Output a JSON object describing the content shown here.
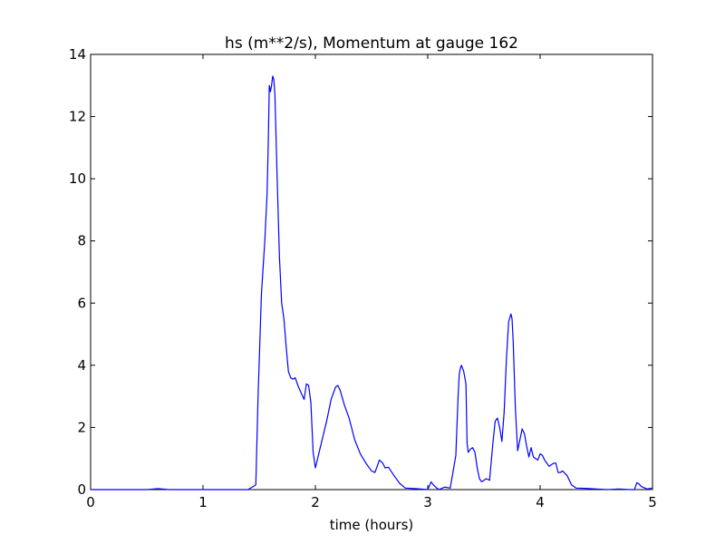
{
  "chart_data": {
    "type": "line",
    "title": "hs (m**2/s), Momentum at gauge 162",
    "xlabel": "time (hours)",
    "ylabel": "",
    "xlim": [
      0,
      5
    ],
    "ylim": [
      0,
      14
    ],
    "x_ticks": [
      "0",
      "1",
      "2",
      "3",
      "4",
      "5"
    ],
    "y_ticks": [
      "0",
      "2",
      "4",
      "6",
      "8",
      "10",
      "12",
      "14"
    ],
    "grid": false,
    "baseline": {
      "y": 0,
      "style": "dashed",
      "color": "#000000"
    },
    "series": [
      {
        "color": "#0000ff",
        "x": [
          0.0,
          0.5,
          0.6,
          0.7,
          1.0,
          1.4,
          1.47,
          1.49,
          1.52,
          1.55,
          1.57,
          1.58,
          1.59,
          1.6,
          1.61,
          1.62,
          1.63,
          1.64,
          1.66,
          1.68,
          1.7,
          1.72,
          1.74,
          1.76,
          1.78,
          1.8,
          1.82,
          1.85,
          1.9,
          1.92,
          1.94,
          1.96,
          1.98,
          2.0,
          2.02,
          2.04,
          2.06,
          2.1,
          2.14,
          2.18,
          2.2,
          2.22,
          2.26,
          2.3,
          2.35,
          2.4,
          2.45,
          2.5,
          2.53,
          2.55,
          2.57,
          2.6,
          2.62,
          2.65,
          2.7,
          2.75,
          2.8,
          2.9,
          3.0,
          3.03,
          3.05,
          3.08,
          3.1,
          3.15,
          3.2,
          3.25,
          3.27,
          3.28,
          3.29,
          3.3,
          3.32,
          3.34,
          3.35,
          3.36,
          3.38,
          3.4,
          3.42,
          3.44,
          3.46,
          3.48,
          3.5,
          3.52,
          3.55,
          3.58,
          3.6,
          3.62,
          3.64,
          3.66,
          3.68,
          3.7,
          3.72,
          3.74,
          3.75,
          3.76,
          3.78,
          3.8,
          3.82,
          3.84,
          3.86,
          3.88,
          3.9,
          3.92,
          3.94,
          3.96,
          3.98,
          4.0,
          4.02,
          4.04,
          4.06,
          4.08,
          4.1,
          4.12,
          4.14,
          4.16,
          4.18,
          4.2,
          4.24,
          4.28,
          4.32,
          4.4,
          4.5,
          4.6,
          4.7,
          4.8,
          4.84,
          4.86,
          4.88,
          4.9,
          4.95,
          5.0
        ],
        "y": [
          0.0,
          0.0,
          0.03,
          0.0,
          0.0,
          0.0,
          0.15,
          3.0,
          6.3,
          8.0,
          9.5,
          11.0,
          13.0,
          12.8,
          13.0,
          13.3,
          13.2,
          12.7,
          10.0,
          7.5,
          6.0,
          5.5,
          4.6,
          3.8,
          3.6,
          3.55,
          3.6,
          3.3,
          2.9,
          3.4,
          3.35,
          2.8,
          1.2,
          0.7,
          1.0,
          1.3,
          1.6,
          2.2,
          2.9,
          3.3,
          3.35,
          3.2,
          2.7,
          2.3,
          1.6,
          1.15,
          0.85,
          0.6,
          0.55,
          0.75,
          0.95,
          0.85,
          0.7,
          0.72,
          0.45,
          0.2,
          0.05,
          0.03,
          0.0,
          0.25,
          0.15,
          0.05,
          0.0,
          0.08,
          0.05,
          1.1,
          3.0,
          3.7,
          3.9,
          4.0,
          3.8,
          3.4,
          1.5,
          1.2,
          1.3,
          1.35,
          1.2,
          0.7,
          0.35,
          0.25,
          0.3,
          0.35,
          0.3,
          1.5,
          2.2,
          2.3,
          2.0,
          1.55,
          2.5,
          4.2,
          5.4,
          5.65,
          5.5,
          4.8,
          2.6,
          1.25,
          1.6,
          1.95,
          1.8,
          1.4,
          1.05,
          1.35,
          1.05,
          1.0,
          0.95,
          1.15,
          1.1,
          0.95,
          0.85,
          0.75,
          0.8,
          0.85,
          0.85,
          0.55,
          0.55,
          0.6,
          0.45,
          0.15,
          0.05,
          0.04,
          0.02,
          0.0,
          0.02,
          0.0,
          0.0,
          0.22,
          0.18,
          0.1,
          0.02,
          0.05
        ]
      }
    ]
  }
}
